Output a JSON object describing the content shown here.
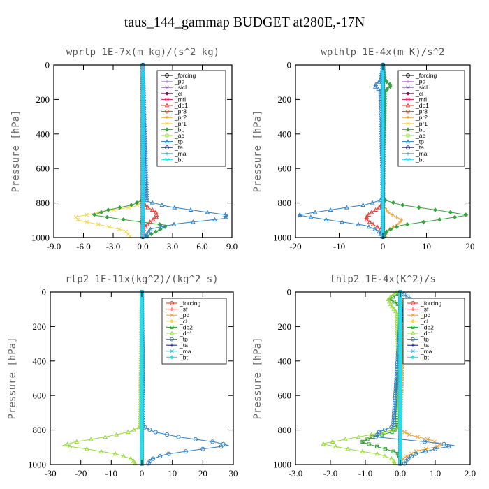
{
  "figure_title": "taus_144_gammap  BUDGET at280E,-17N",
  "colors": {
    "forcing": "#000000",
    "pd": "#c08ad8",
    "sicl": "#8a5cc4",
    "cl": "#7a1a5a",
    "mfl": "#cc1f5c",
    "dp1": "#e0403a",
    "pr3": "#e83a2a",
    "pr2": "#f0a030",
    "pr1": "#f0d84a",
    "bp": "#3aa040",
    "ac": "#9ad840",
    "tp": "#2f7fc0",
    "ta": "#1a1aa0",
    "ma": "#3fa8d8",
    "bt": "#20e0f0",
    "red": "#e0281a",
    "sf": "#e03a30",
    "dp2": "#2a9a2a"
  },
  "chart_data": [
    {
      "type": "line",
      "title": "wprtp  1E-7x(m kg)/(s^2 kg)",
      "ylabel": "Pressure [hPa]",
      "xlim": [
        -9,
        9
      ],
      "ylim": [
        1000,
        0
      ],
      "xticks": [
        -9,
        -6,
        -3,
        0,
        3,
        6,
        9
      ],
      "xticklabels": [
        "-9.0",
        "-6.0",
        "-3.0",
        "0.0",
        "3.0",
        "6.0",
        "9.0"
      ],
      "yticks": [
        0,
        200,
        400,
        600,
        800,
        1000
      ],
      "yticklabels": [
        "0",
        "200",
        "400",
        "600",
        "800",
        "1000"
      ],
      "legend_location": "upper-right",
      "legend": [
        "_forcing",
        "_pd",
        "_sicl",
        "_cl",
        "_mfl",
        "_dp1",
        "_pr3",
        "_pr2",
        "_pr1",
        "_bp",
        "_ac",
        "_tp",
        "_ta",
        "_ma",
        "_bt"
      ],
      "series": [
        {
          "name": "_forcing",
          "color": "#000000",
          "y": [
            0,
            800,
            1000
          ],
          "x": [
            0,
            0,
            0
          ]
        },
        {
          "name": "_pd",
          "color": "#c08ad8",
          "y": [
            0,
            800,
            1000
          ],
          "x": [
            0,
            0,
            0
          ]
        },
        {
          "name": "_sicl",
          "color": "#8a5cc4",
          "y": [
            0,
            800,
            1000
          ],
          "x": [
            0,
            0,
            0
          ]
        },
        {
          "name": "_cl",
          "color": "#7a1a5a",
          "y": [
            0,
            800,
            1000
          ],
          "x": [
            0,
            0,
            0
          ]
        },
        {
          "name": "_mfl",
          "color": "#cc1f5c",
          "y": [
            0,
            1000
          ],
          "x": [
            0,
            0
          ]
        },
        {
          "name": "_dp1",
          "color": "#e0403a",
          "y": [
            0,
            790,
            820,
            850,
            880,
            920,
            950,
            1000
          ],
          "x": [
            0,
            0,
            0.3,
            1.3,
            1.4,
            0.5,
            0.1,
            0
          ]
        },
        {
          "name": "_pr3",
          "color": "#e83a2a",
          "y": [
            0,
            1000
          ],
          "x": [
            0,
            0
          ]
        },
        {
          "name": "_pr2",
          "color": "#f0a030",
          "y": [
            0,
            1000
          ],
          "x": [
            0,
            0
          ]
        },
        {
          "name": "_pr1",
          "color": "#f0d84a",
          "y": [
            0,
            790,
            820,
            850,
            880,
            900,
            930,
            960,
            1000
          ],
          "x": [
            0,
            0,
            -0.8,
            -4,
            -6.8,
            -6.5,
            -4,
            -1.8,
            -1.2
          ]
        },
        {
          "name": "_bp",
          "color": "#3aa040",
          "y": [
            0,
            780,
            810,
            840,
            870,
            900,
            930,
            960,
            1000
          ],
          "x": [
            0,
            0,
            -1,
            -3.5,
            -5,
            -1.5,
            2.5,
            1.5,
            0.2
          ]
        },
        {
          "name": "_ac",
          "color": "#9ad840",
          "y": [
            0,
            1000
          ],
          "x": [
            0,
            0
          ]
        },
        {
          "name": "_tp",
          "color": "#2f7fc0",
          "y": [
            0,
            790,
            820,
            850,
            870,
            890,
            920,
            950,
            980,
            1000
          ],
          "x": [
            0,
            0.4,
            2.5,
            6,
            8.6,
            8.2,
            3.5,
            0.8,
            0.4,
            0.3
          ]
        },
        {
          "name": "_ta",
          "color": "#1a1aa0",
          "y": [
            0,
            1000
          ],
          "x": [
            0,
            0
          ]
        },
        {
          "name": "_ma",
          "color": "#3fa8d8",
          "y": [
            0,
            1000
          ],
          "x": [
            0,
            0
          ]
        },
        {
          "name": "_bt",
          "color": "#20e0f0",
          "y": [
            0,
            1000
          ],
          "x": [
            0,
            0
          ]
        }
      ]
    },
    {
      "type": "line",
      "title": "wpthlp  1E-4x(m K)/s^2",
      "ylabel": "Pressure [hPa]",
      "xlim": [
        -20,
        20
      ],
      "ylim": [
        1000,
        0
      ],
      "xticks": [
        -20,
        -10,
        0,
        10,
        20
      ],
      "xticklabels": [
        "-20",
        "-10",
        "0",
        "10",
        "20"
      ],
      "yticks": [
        0,
        200,
        400,
        600,
        800,
        1000
      ],
      "yticklabels": [
        "0",
        "200",
        "400",
        "600",
        "800",
        "1000"
      ],
      "legend_location": "upper-right",
      "legend": [
        "_forcing",
        "_pd",
        "_sicl",
        "_cl",
        "_mfl",
        "_dp1",
        "_pr3",
        "_pr2",
        "_pr1",
        "_bp",
        "_ac",
        "_tp",
        "_ta",
        "_ma",
        "_bt"
      ],
      "series": [
        {
          "name": "_forcing",
          "color": "#000000",
          "y": [
            0,
            1000
          ],
          "x": [
            0,
            0
          ]
        },
        {
          "name": "_pd",
          "color": "#c08ad8",
          "y": [
            0,
            1000
          ],
          "x": [
            0,
            0
          ]
        },
        {
          "name": "_sicl",
          "color": "#8a5cc4",
          "y": [
            0,
            1000
          ],
          "x": [
            0,
            0
          ]
        },
        {
          "name": "_cl",
          "color": "#7a1a5a",
          "y": [
            0,
            1000
          ],
          "x": [
            0,
            0
          ]
        },
        {
          "name": "_mfl",
          "color": "#cc1f5c",
          "y": [
            0,
            1000
          ],
          "x": [
            0,
            0
          ]
        },
        {
          "name": "_dp1",
          "color": "#e0403a",
          "y": [
            0,
            800,
            830,
            860,
            890,
            920,
            950,
            1000
          ],
          "x": [
            0,
            0,
            -1,
            -3,
            -4,
            -2.5,
            -0.5,
            0
          ]
        },
        {
          "name": "_pr3",
          "color": "#e83a2a",
          "y": [
            0,
            1000
          ],
          "x": [
            0,
            0
          ]
        },
        {
          "name": "_pr2",
          "color": "#f0a030",
          "y": [
            0,
            820,
            860,
            900,
            930,
            960,
            1000
          ],
          "x": [
            0,
            0.2,
            1.5,
            4.5,
            3,
            1,
            0.5
          ]
        },
        {
          "name": "_pr1",
          "color": "#f0d84a",
          "y": [
            0,
            1000
          ],
          "x": [
            0,
            0
          ]
        },
        {
          "name": "_bp",
          "color": "#3aa040",
          "y": [
            0,
            90,
            120,
            150,
            780,
            810,
            840,
            870,
            900,
            930,
            960,
            1000
          ],
          "x": [
            0,
            0.5,
            2,
            0.5,
            0,
            4,
            12,
            19.5,
            12,
            4,
            1,
            0
          ]
        },
        {
          "name": "_ac",
          "color": "#9ad840",
          "y": [
            0,
            1000
          ],
          "x": [
            0,
            0
          ]
        },
        {
          "name": "_tp",
          "color": "#2f7fc0",
          "y": [
            0,
            90,
            120,
            150,
            780,
            810,
            840,
            870,
            900,
            930,
            960,
            1000
          ],
          "x": [
            0,
            -0.5,
            -2,
            -0.5,
            0,
            -4,
            -12,
            -19.5,
            -12,
            -4,
            -1,
            0
          ]
        },
        {
          "name": "_ta",
          "color": "#1a1aa0",
          "y": [
            0,
            1000
          ],
          "x": [
            0,
            0
          ]
        },
        {
          "name": "_ma",
          "color": "#3fa8d8",
          "y": [
            0,
            1000
          ],
          "x": [
            0,
            0
          ]
        },
        {
          "name": "_bt",
          "color": "#20e0f0",
          "y": [
            0,
            1000
          ],
          "x": [
            0,
            0
          ]
        }
      ]
    },
    {
      "type": "line",
      "title": "rtp2  1E-11x(kg^2)/(kg^2 s)",
      "ylabel": "Pressure [hPa]",
      "xlim": [
        -30,
        30
      ],
      "ylim": [
        1000,
        0
      ],
      "xticks": [
        -30,
        -20,
        -10,
        0,
        10,
        20,
        30
      ],
      "xticklabels": [
        "-30",
        "-20",
        "-10",
        "0",
        "10",
        "20",
        "30"
      ],
      "yticks": [
        0,
        200,
        400,
        600,
        800,
        1000
      ],
      "yticklabels": [
        "0",
        "200",
        "400",
        "600",
        "800",
        "1000"
      ],
      "legend_location": "upper-right",
      "legend": [
        "_forcing",
        "_sf",
        "_pd",
        "_cl",
        "_dp2",
        "_dp1",
        "_tp",
        "_ta",
        "_ma",
        "_bt"
      ],
      "series": [
        {
          "name": "_forcing",
          "color": "#e0281a",
          "y": [
            0,
            1000
          ],
          "x": [
            0,
            0
          ]
        },
        {
          "name": "_sf",
          "color": "#e03a30",
          "y": [
            0,
            1000
          ],
          "x": [
            0,
            0
          ]
        },
        {
          "name": "_pd",
          "color": "#f0a030",
          "y": [
            0,
            1000
          ],
          "x": [
            0,
            0
          ]
        },
        {
          "name": "_cl",
          "color": "#f0d84a",
          "y": [
            0,
            1000
          ],
          "x": [
            0,
            0
          ]
        },
        {
          "name": "_dp2",
          "color": "#2a9a2a",
          "y": [
            0,
            1000
          ],
          "x": [
            0,
            0
          ]
        },
        {
          "name": "_dp1",
          "color": "#9ad840",
          "y": [
            0,
            780,
            810,
            840,
            870,
            890,
            910,
            940,
            970,
            1000
          ],
          "x": [
            0,
            -0.5,
            -4,
            -12,
            -22,
            -26,
            -18,
            -8,
            -3,
            -2
          ]
        },
        {
          "name": "_tp",
          "color": "#2f7fc0",
          "y": [
            0,
            780,
            810,
            840,
            870,
            890,
            910,
            940,
            970,
            1000
          ],
          "x": [
            0,
            0.5,
            4,
            12,
            24,
            28.5,
            20,
            8,
            3,
            2
          ]
        },
        {
          "name": "_ta",
          "color": "#1a1aa0",
          "y": [
            0,
            1000
          ],
          "x": [
            0,
            0
          ]
        },
        {
          "name": "_ma",
          "color": "#3fa8d8",
          "y": [
            0,
            1000
          ],
          "x": [
            0,
            0
          ]
        },
        {
          "name": "_bt",
          "color": "#20e0f0",
          "y": [
            0,
            1000
          ],
          "x": [
            0,
            0
          ]
        }
      ]
    },
    {
      "type": "line",
      "title": "thlp2  1E-4x(K^2)/s",
      "ylabel": "Pressure [hPa]",
      "xlim": [
        -3,
        2
      ],
      "ylim": [
        1000,
        0
      ],
      "xticks": [
        -3,
        -2,
        -1,
        0,
        1,
        2
      ],
      "xticklabels": [
        "-3.0",
        "-2.0",
        "-1.0",
        "0.0",
        "1.0",
        "2.0"
      ],
      "yticks": [
        0,
        200,
        400,
        600,
        800,
        1000
      ],
      "yticklabels": [
        "0",
        "200",
        "400",
        "600",
        "800",
        "1000"
      ],
      "legend_location": "upper-right",
      "legend": [
        "_forcing",
        "_sf",
        "_pd",
        "_cl",
        "_dp2",
        "_dp1",
        "_tp",
        "_ta",
        "_ma",
        "_bt"
      ],
      "series": [
        {
          "name": "_forcing",
          "color": "#e0281a",
          "y": [
            0,
            1000
          ],
          "x": [
            0,
            0
          ]
        },
        {
          "name": "_sf",
          "color": "#e03a30",
          "y": [
            0,
            1000
          ],
          "x": [
            0,
            0
          ]
        },
        {
          "name": "_pd",
          "color": "#f0a030",
          "y": [
            0,
            100,
            150,
            800,
            830,
            860,
            890,
            920,
            960,
            1000
          ],
          "x": [
            0,
            0.08,
            0.1,
            0,
            0.3,
            0.9,
            1.2,
            0.5,
            0.1,
            0
          ]
        },
        {
          "name": "_cl",
          "color": "#f0d84a",
          "y": [
            0,
            1000
          ],
          "x": [
            0,
            0
          ]
        },
        {
          "name": "_dp2",
          "color": "#2a9a2a",
          "y": [
            0,
            40,
            80,
            780,
            810,
            840,
            870,
            900,
            930,
            960,
            1000
          ],
          "x": [
            0,
            -0.3,
            0,
            -0.1,
            -0.2,
            -0.8,
            -1.1,
            -0.6,
            -0.1,
            0,
            0
          ]
        },
        {
          "name": "_dp1",
          "color": "#9ad840",
          "y": [
            0,
            40,
            80,
            120,
            780,
            810,
            840,
            880,
            910,
            940,
            970,
            1000
          ],
          "x": [
            -0.1,
            -0.35,
            -0.25,
            -0.1,
            0,
            -0.4,
            -1.2,
            -2.25,
            -1.5,
            -0.6,
            -0.2,
            -0.15
          ]
        },
        {
          "name": "_tp",
          "color": "#2f7fc0",
          "y": [
            0,
            40,
            80,
            120,
            180,
            780,
            810,
            840,
            870,
            890,
            910,
            940,
            970,
            1000
          ],
          "x": [
            0,
            0.3,
            0.1,
            0.05,
            0,
            -0.2,
            -0.6,
            -0.7,
            0.8,
            1.55,
            1.0,
            0.4,
            0.2,
            0.1
          ]
        },
        {
          "name": "_ta",
          "color": "#1a1aa0",
          "y": [
            0,
            1000
          ],
          "x": [
            0,
            0
          ]
        },
        {
          "name": "_ma",
          "color": "#3fa8d8",
          "y": [
            0,
            1000
          ],
          "x": [
            0,
            0
          ]
        },
        {
          "name": "_bt",
          "color": "#20e0f0",
          "y": [
            0,
            1000
          ],
          "x": [
            0,
            0
          ]
        }
      ]
    }
  ]
}
